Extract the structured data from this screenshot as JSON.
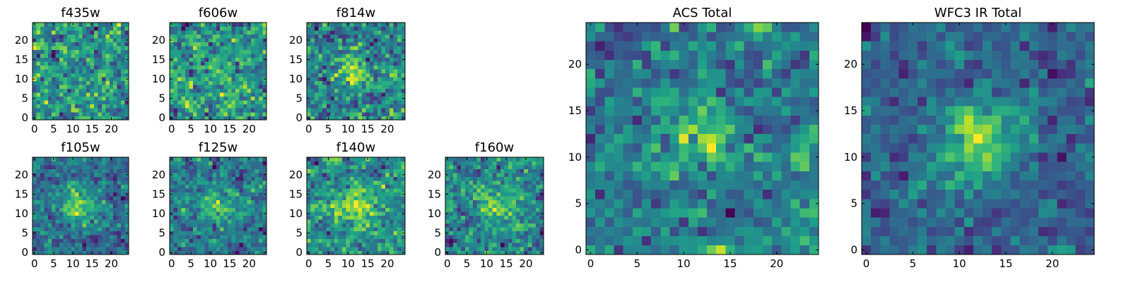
{
  "figure": {
    "description_free": true
  },
  "chart_data": [
    {
      "type": "heatmap",
      "title": "f435w",
      "size": 25,
      "colormap": "viridis",
      "seed": 11,
      "peak": 0.0,
      "noise": 1.0,
      "xlim": [
        -0.5,
        24.5
      ],
      "ylim": [
        -0.5,
        24.5
      ],
      "xticks": [
        {
          "v": 0,
          "label": "0"
        },
        {
          "v": 5,
          "label": "5"
        },
        {
          "v": 10,
          "label": "10"
        },
        {
          "v": 15,
          "label": "15"
        },
        {
          "v": 20,
          "label": "20"
        }
      ],
      "yticks": [
        {
          "v": 0,
          "label": "0"
        },
        {
          "v": 5,
          "label": "5"
        },
        {
          "v": 10,
          "label": "10"
        },
        {
          "v": 15,
          "label": "15"
        },
        {
          "v": 20,
          "label": "20"
        }
      ]
    },
    {
      "type": "heatmap",
      "title": "f606w",
      "size": 25,
      "colormap": "viridis",
      "seed": 23,
      "peak": 0.2,
      "noise": 1.0,
      "xlim": [
        -0.5,
        24.5
      ],
      "ylim": [
        -0.5,
        24.5
      ],
      "xticks": [
        {
          "v": 0,
          "label": "0"
        },
        {
          "v": 5,
          "label": "5"
        },
        {
          "v": 10,
          "label": "10"
        },
        {
          "v": 15,
          "label": "15"
        },
        {
          "v": 20,
          "label": "20"
        }
      ],
      "yticks": [
        {
          "v": 0,
          "label": "0"
        },
        {
          "v": 5,
          "label": "5"
        },
        {
          "v": 10,
          "label": "10"
        },
        {
          "v": 15,
          "label": "15"
        },
        {
          "v": 20,
          "label": "20"
        }
      ]
    },
    {
      "type": "heatmap",
      "title": "f814w",
      "size": 25,
      "colormap": "viridis",
      "seed": 37,
      "peak": 0.5,
      "noise": 1.0,
      "xlim": [
        -0.5,
        24.5
      ],
      "ylim": [
        -0.5,
        24.5
      ],
      "xticks": [
        {
          "v": 0,
          "label": "0"
        },
        {
          "v": 5,
          "label": "5"
        },
        {
          "v": 10,
          "label": "10"
        },
        {
          "v": 15,
          "label": "15"
        },
        {
          "v": 20,
          "label": "20"
        }
      ],
      "yticks": [
        {
          "v": 0,
          "label": "0"
        },
        {
          "v": 5,
          "label": "5"
        },
        {
          "v": 10,
          "label": "10"
        },
        {
          "v": 15,
          "label": "15"
        },
        {
          "v": 20,
          "label": "20"
        }
      ]
    },
    {
      "type": "heatmap",
      "title": "f105w",
      "size": 25,
      "colormap": "viridis",
      "seed": 41,
      "peak": 0.9,
      "noise": 0.8,
      "xlim": [
        -0.5,
        24.5
      ],
      "ylim": [
        -0.5,
        24.5
      ],
      "xticks": [
        {
          "v": 0,
          "label": "0"
        },
        {
          "v": 5,
          "label": "5"
        },
        {
          "v": 10,
          "label": "10"
        },
        {
          "v": 15,
          "label": "15"
        },
        {
          "v": 20,
          "label": "20"
        }
      ],
      "yticks": [
        {
          "v": 0,
          "label": "0"
        },
        {
          "v": 5,
          "label": "5"
        },
        {
          "v": 10,
          "label": "10"
        },
        {
          "v": 15,
          "label": "15"
        },
        {
          "v": 20,
          "label": "20"
        }
      ]
    },
    {
      "type": "heatmap",
      "title": "f125w",
      "size": 25,
      "colormap": "viridis",
      "seed": 53,
      "peak": 0.6,
      "noise": 0.9,
      "xlim": [
        -0.5,
        24.5
      ],
      "ylim": [
        -0.5,
        24.5
      ],
      "xticks": [
        {
          "v": 0,
          "label": "0"
        },
        {
          "v": 5,
          "label": "5"
        },
        {
          "v": 10,
          "label": "10"
        },
        {
          "v": 15,
          "label": "15"
        },
        {
          "v": 20,
          "label": "20"
        }
      ],
      "yticks": [
        {
          "v": 0,
          "label": "0"
        },
        {
          "v": 5,
          "label": "5"
        },
        {
          "v": 10,
          "label": "10"
        },
        {
          "v": 15,
          "label": "15"
        },
        {
          "v": 20,
          "label": "20"
        }
      ]
    },
    {
      "type": "heatmap",
      "title": "f140w",
      "size": 25,
      "colormap": "viridis",
      "seed": 67,
      "peak": 0.7,
      "noise": 0.9,
      "xlim": [
        -0.5,
        24.5
      ],
      "ylim": [
        -0.5,
        24.5
      ],
      "xticks": [
        {
          "v": 0,
          "label": "0"
        },
        {
          "v": 5,
          "label": "5"
        },
        {
          "v": 10,
          "label": "10"
        },
        {
          "v": 15,
          "label": "15"
        },
        {
          "v": 20,
          "label": "20"
        }
      ],
      "yticks": [
        {
          "v": 0,
          "label": "0"
        },
        {
          "v": 5,
          "label": "5"
        },
        {
          "v": 10,
          "label": "10"
        },
        {
          "v": 15,
          "label": "15"
        },
        {
          "v": 20,
          "label": "20"
        }
      ]
    },
    {
      "type": "heatmap",
      "title": "f160w",
      "size": 25,
      "colormap": "viridis",
      "seed": 79,
      "peak": 0.8,
      "noise": 1.0,
      "xlim": [
        -0.5,
        24.5
      ],
      "ylim": [
        -0.5,
        24.5
      ],
      "xticks": [
        {
          "v": 0,
          "label": "0"
        },
        {
          "v": 5,
          "label": "5"
        },
        {
          "v": 10,
          "label": "10"
        },
        {
          "v": 15,
          "label": "15"
        },
        {
          "v": 20,
          "label": "20"
        }
      ],
      "yticks": [
        {
          "v": 0,
          "label": "0"
        },
        {
          "v": 5,
          "label": "5"
        },
        {
          "v": 10,
          "label": "10"
        },
        {
          "v": 15,
          "label": "15"
        },
        {
          "v": 20,
          "label": "20"
        }
      ]
    },
    {
      "type": "heatmap",
      "title": "ACS Total",
      "size": 25,
      "colormap": "viridis",
      "seed": 97,
      "peak": 0.5,
      "noise": 0.9,
      "xlim": [
        -0.5,
        24.5
      ],
      "ylim": [
        -0.5,
        24.5
      ],
      "xticks": [
        {
          "v": 0,
          "label": "0"
        },
        {
          "v": 5,
          "label": "5"
        },
        {
          "v": 10,
          "label": "10"
        },
        {
          "v": 15,
          "label": "15"
        },
        {
          "v": 20,
          "label": "20"
        }
      ],
      "yticks": [
        {
          "v": 0,
          "label": "0"
        },
        {
          "v": 5,
          "label": "5"
        },
        {
          "v": 10,
          "label": "10"
        },
        {
          "v": 15,
          "label": "15"
        },
        {
          "v": 20,
          "label": "20"
        }
      ]
    },
    {
      "type": "heatmap",
      "title": "WFC3 IR Total",
      "size": 25,
      "colormap": "viridis",
      "seed": 101,
      "peak": 1.1,
      "noise": 0.7,
      "xlim": [
        -0.5,
        24.5
      ],
      "ylim": [
        -0.5,
        24.5
      ],
      "xticks": [
        {
          "v": 0,
          "label": "0"
        },
        {
          "v": 5,
          "label": "5"
        },
        {
          "v": 10,
          "label": "10"
        },
        {
          "v": 15,
          "label": "15"
        },
        {
          "v": 20,
          "label": "20"
        }
      ],
      "yticks": [
        {
          "v": 0,
          "label": "0"
        },
        {
          "v": 5,
          "label": "5"
        },
        {
          "v": 10,
          "label": "10"
        },
        {
          "v": 15,
          "label": "15"
        },
        {
          "v": 20,
          "label": "20"
        }
      ]
    }
  ]
}
